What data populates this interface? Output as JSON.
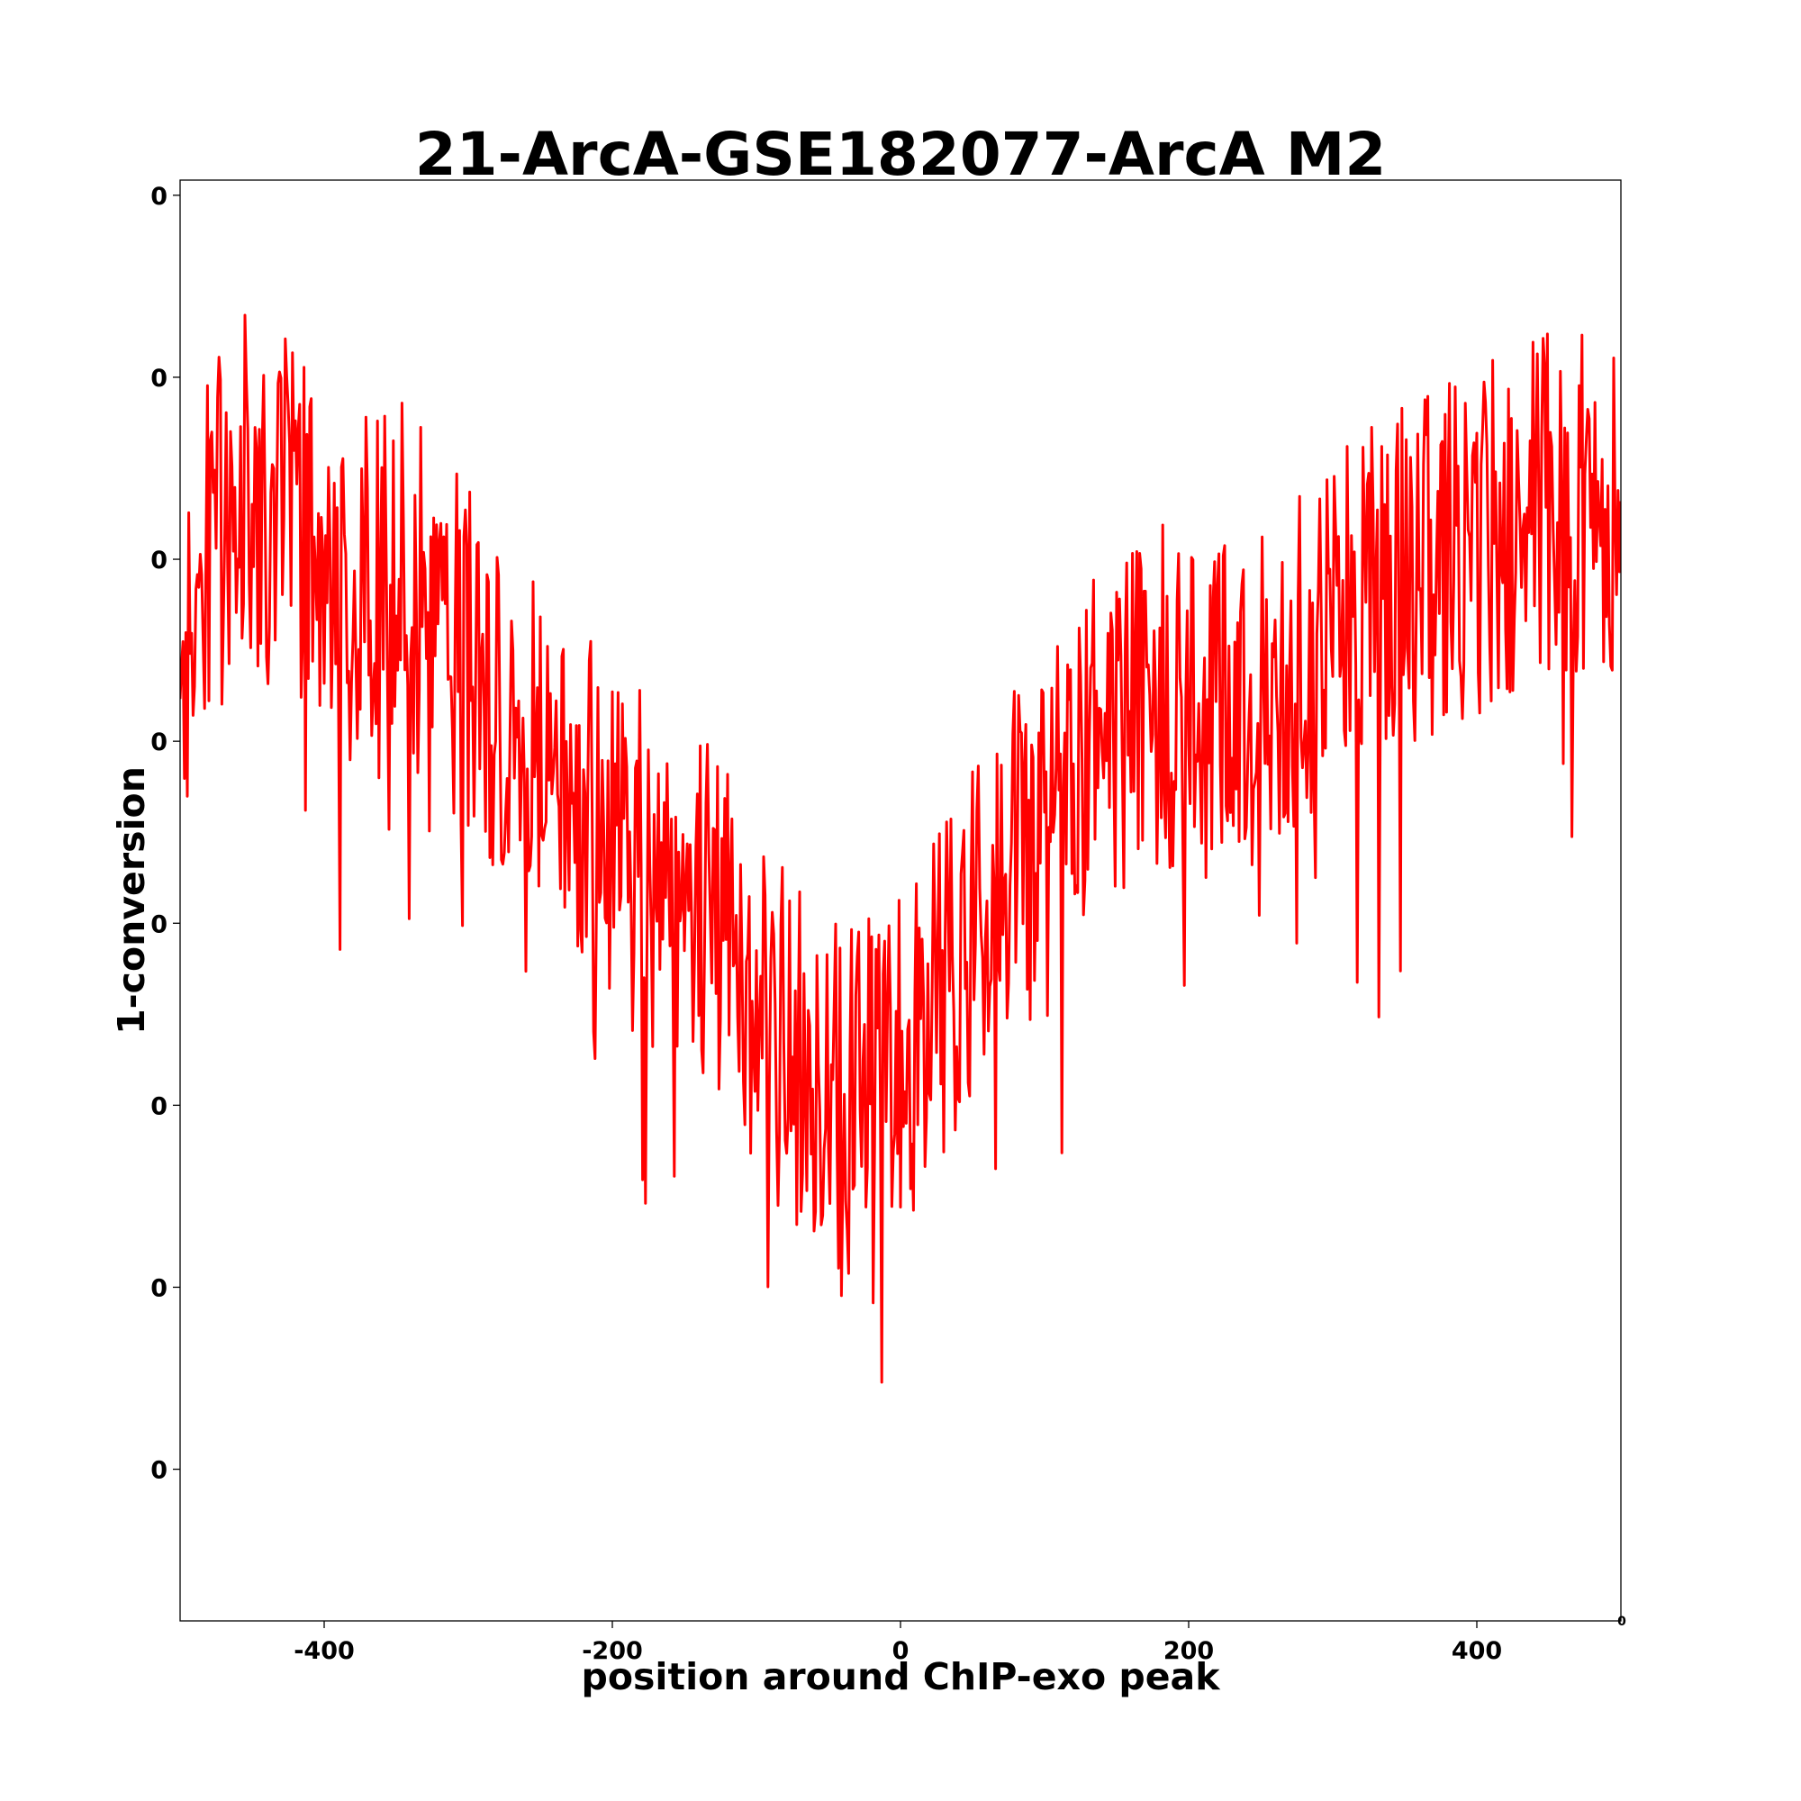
{
  "chart_data": {
    "type": "line",
    "title": "21-ArcA-GSE182077-ArcA M2",
    "xlabel": "position around ChIP-exo peak",
    "ylabel": "1-conversion",
    "xlim": [
      -500,
      500
    ],
    "ylim": [
      0,
      0.0475
    ],
    "x_ticks": [
      -400,
      -200,
      0,
      200,
      400
    ],
    "x_tick_labels": [
      "-400",
      "-200",
      "0",
      "200",
      "400"
    ],
    "y_ticks": [
      0.005,
      0.011,
      0.017,
      0.023,
      0.029,
      0.035,
      0.041,
      0.047
    ],
    "y_tick_labels": [
      "0",
      "0",
      "0",
      "0",
      "0",
      "0",
      "0",
      "0"
    ],
    "corner_label": "0",
    "grid": false,
    "line_color": "#ff0000",
    "series": [
      {
        "x": [
          -500,
          -480,
          -460,
          -440,
          -420,
          -400,
          -380,
          -360,
          -340,
          -320,
          -300,
          -280,
          -260,
          -240,
          -220,
          -200,
          -180,
          -160,
          -140,
          -120,
          -100,
          -80,
          -60,
          -40,
          -20,
          0,
          20,
          40,
          60,
          80,
          100,
          120,
          140,
          160,
          180,
          200,
          220,
          240,
          260,
          280,
          300,
          320,
          340,
          360,
          380,
          400,
          420,
          440,
          460,
          480,
          500
        ],
        "y": [
          0.03,
          0.0352,
          0.038,
          0.0362,
          0.0368,
          0.0338,
          0.0335,
          0.0355,
          0.034,
          0.033,
          0.0315,
          0.03,
          0.029,
          0.0283,
          0.0278,
          0.0255,
          0.025,
          0.024,
          0.024,
          0.0225,
          0.0205,
          0.019,
          0.018,
          0.017,
          0.0175,
          0.0185,
          0.02,
          0.0215,
          0.0235,
          0.025,
          0.0255,
          0.0275,
          0.029,
          0.03,
          0.0305,
          0.0305,
          0.03,
          0.0305,
          0.0315,
          0.032,
          0.0325,
          0.0335,
          0.034,
          0.0345,
          0.035,
          0.0355,
          0.036,
          0.037,
          0.0365,
          0.037,
          0.036
        ],
        "noise_amplitude": 0.0058
      }
    ]
  }
}
